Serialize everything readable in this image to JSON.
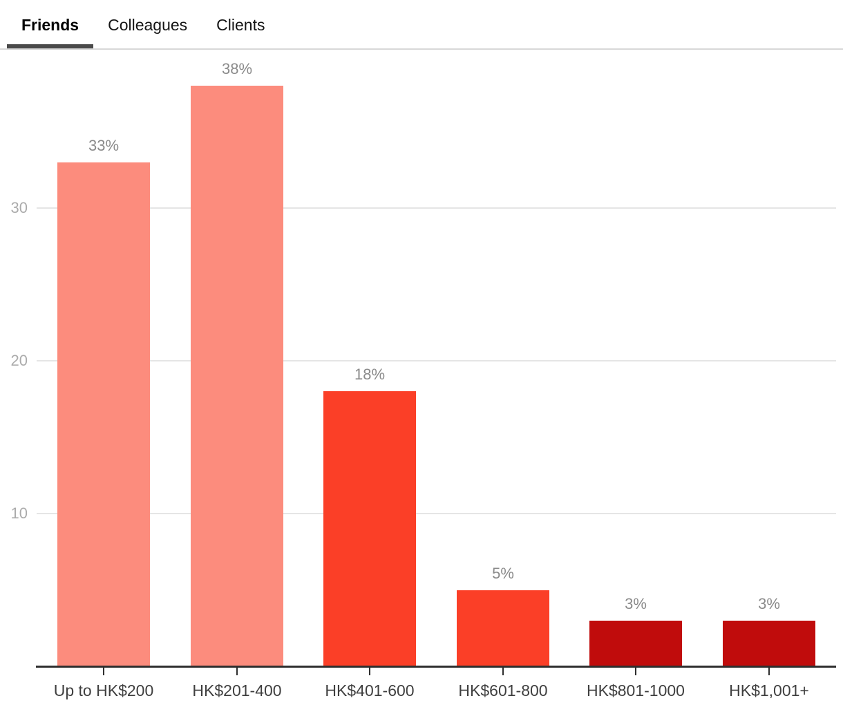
{
  "tabs": {
    "items": [
      {
        "label": "Friends",
        "active": true
      },
      {
        "label": "Colleagues",
        "active": false
      },
      {
        "label": "Clients",
        "active": false
      }
    ]
  },
  "chart_data": {
    "type": "bar",
    "title": "",
    "xlabel": "",
    "ylabel": "",
    "categories": [
      "Up to HK$200",
      "HK$201-400",
      "HK$401-600",
      "HK$601-800",
      "HK$801-1000",
      "HK$1,001+"
    ],
    "values": [
      33,
      38,
      18,
      5,
      3,
      3
    ],
    "value_labels": [
      "33%",
      "38%",
      "18%",
      "5%",
      "3%",
      "3%"
    ],
    "bar_colors": [
      "#FC8C7D",
      "#FC8C7D",
      "#FB3F27",
      "#FB3F27",
      "#C00C0C",
      "#C00C0C"
    ],
    "yticks": [
      10,
      20,
      30
    ],
    "ylim": [
      0,
      40
    ],
    "grid": "horizontal",
    "legend_position": "none",
    "colors": {
      "salmon": "#FC8C7D",
      "bright_red": "#FB3F27",
      "dark_red": "#C00C0C",
      "grid_line": "#e5e5e5",
      "axis_line": "#2e2e2e",
      "y_tick_label": "#ababab",
      "value_label": "#8a8a8a",
      "x_tick_label": "#3f3f3f",
      "active_tab_underline": "#4a4a4a",
      "tab_divider": "#d8d8d8"
    }
  }
}
